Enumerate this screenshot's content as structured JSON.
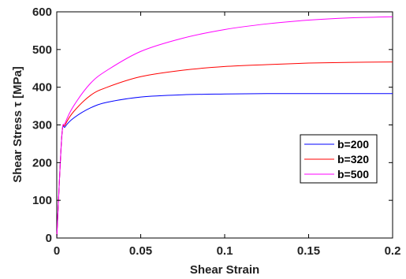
{
  "chart_data": {
    "type": "line",
    "xlabel": "Shear Strain",
    "ylabel": "Shear Stress τ [MPa]",
    "xlim": [
      0,
      0.2
    ],
    "ylim": [
      0,
      600
    ],
    "x_ticks": [
      0,
      0.05,
      0.1,
      0.15,
      0.2
    ],
    "x_tick_labels": [
      "0",
      "0.05",
      "0.1",
      "0.15",
      "0.2"
    ],
    "y_ticks": [
      0,
      100,
      200,
      300,
      400,
      500,
      600
    ],
    "y_tick_labels": [
      "0",
      "100",
      "200",
      "300",
      "400",
      "500",
      "600"
    ],
    "grid": false,
    "legend_position": "right-middle",
    "series": [
      {
        "name": "b=200",
        "color": "#0000ff",
        "x": [
          0,
          0.003,
          0.005,
          0.01,
          0.02,
          0.03,
          0.05,
          0.075,
          0.1,
          0.125,
          0.15,
          0.175,
          0.2
        ],
        "y": [
          0,
          270,
          295,
          318,
          345,
          360,
          374,
          380,
          382,
          383,
          383,
          383,
          383
        ]
      },
      {
        "name": "b=320",
        "color": "#ff0000",
        "x": [
          0,
          0.003,
          0.005,
          0.01,
          0.02,
          0.03,
          0.05,
          0.075,
          0.1,
          0.125,
          0.15,
          0.175,
          0.2
        ],
        "y": [
          0,
          270,
          300,
          335,
          378,
          400,
          428,
          445,
          455,
          460,
          464,
          466,
          467
        ]
      },
      {
        "name": "b=500",
        "color": "#ff00ff",
        "x": [
          0,
          0.003,
          0.005,
          0.01,
          0.02,
          0.03,
          0.05,
          0.075,
          0.1,
          0.125,
          0.15,
          0.175,
          0.2
        ],
        "y": [
          0,
          270,
          305,
          350,
          410,
          445,
          495,
          530,
          553,
          568,
          578,
          584,
          587
        ]
      }
    ]
  }
}
